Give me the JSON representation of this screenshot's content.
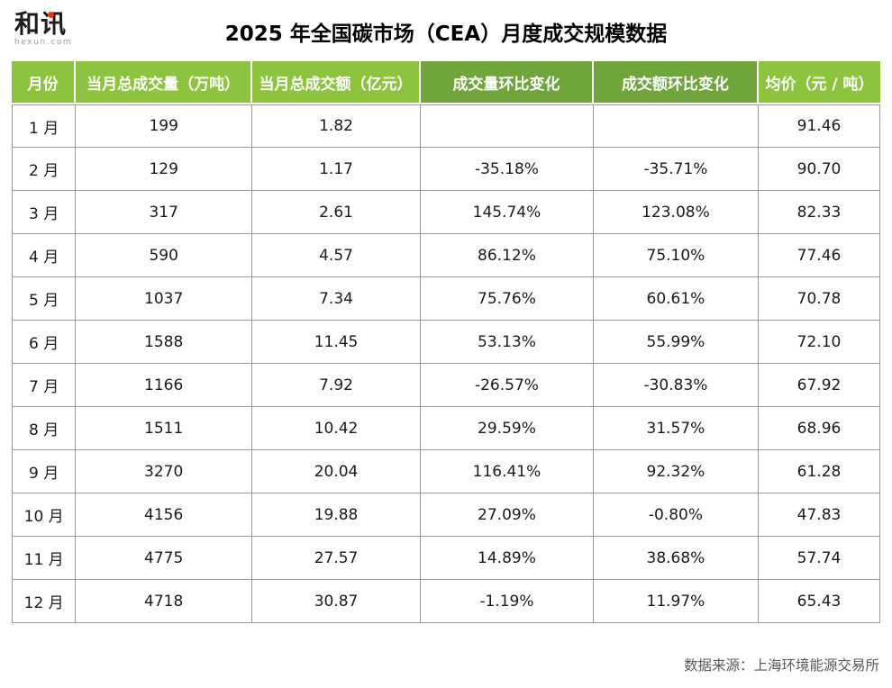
{
  "logo": {
    "brand": "和讯",
    "domain": "hexun.com",
    "accent_color": "#e8380d"
  },
  "title": "2025 年全国碳市场（CEA）月度成交规模数据",
  "footer": {
    "source": "数据来源：上海环境能源交易所"
  },
  "colors": {
    "header_light_green": "#8cc43e",
    "header_dark_green": "#6fa53a",
    "grid_border": "#999999",
    "body_text": "#1a1a1a",
    "source_text": "#595959"
  },
  "chart_data": {
    "type": "table",
    "title": "2025 年全国碳市场（CEA）月度成交规模数据",
    "source": "上海环境能源交易所",
    "columns": [
      {
        "key": "month",
        "label": "月份",
        "shade": "light"
      },
      {
        "key": "volume",
        "label": "当月总成交量（万吨）",
        "shade": "light"
      },
      {
        "key": "turnover",
        "label": "当月总成交额（亿元）",
        "shade": "light"
      },
      {
        "key": "volume_mom",
        "label": "成交量环比变化",
        "shade": "dark"
      },
      {
        "key": "turnover_mom",
        "label": "成交额环比变化",
        "shade": "dark"
      },
      {
        "key": "avg_price",
        "label": "均价（元 / 吨）",
        "shade": "light"
      }
    ],
    "rows": [
      [
        "1 月",
        "199",
        "1.82",
        "",
        "",
        "91.46"
      ],
      [
        "2 月",
        "129",
        "1.17",
        "-35.18%",
        "-35.71%",
        "90.70"
      ],
      [
        "3 月",
        "317",
        "2.61",
        "145.74%",
        "123.08%",
        "82.33"
      ],
      [
        "4 月",
        "590",
        "4.57",
        "86.12%",
        "75.10%",
        "77.46"
      ],
      [
        "5 月",
        "1037",
        "7.34",
        "75.76%",
        "60.61%",
        "70.78"
      ],
      [
        "6 月",
        "1588",
        "11.45",
        "53.13%",
        "55.99%",
        "72.10"
      ],
      [
        "7 月",
        "1166",
        "7.92",
        "-26.57%",
        "-30.83%",
        "67.92"
      ],
      [
        "8 月",
        "1511",
        "10.42",
        "29.59%",
        "31.57%",
        "68.96"
      ],
      [
        "9 月",
        "3270",
        "20.04",
        "116.41%",
        "92.32%",
        "61.28"
      ],
      [
        "10 月",
        "4156",
        "19.88",
        "27.09%",
        "-0.80%",
        "47.83"
      ],
      [
        "11 月",
        "4775",
        "27.57",
        "14.89%",
        "38.68%",
        "57.74"
      ],
      [
        "12 月",
        "4718",
        "30.87",
        "-1.19%",
        "11.97%",
        "65.43"
      ]
    ]
  }
}
